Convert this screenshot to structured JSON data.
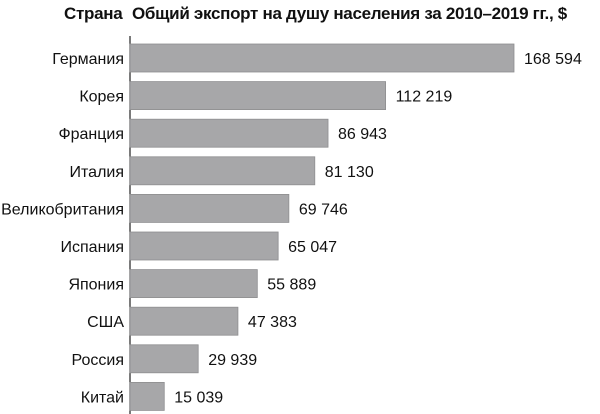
{
  "header": {
    "category_label": "Страна",
    "title": "Общий экспорт на душу населения за 2010–2019 гг., $"
  },
  "chart_data": {
    "type": "bar",
    "orientation": "horizontal",
    "categories": [
      "Германия",
      "Корея",
      "Франция",
      "Италия",
      "Великобритания",
      "Испания",
      "Япония",
      "США",
      "Россия",
      "Китай"
    ],
    "values": [
      168594,
      112219,
      86943,
      81130,
      69746,
      65047,
      55889,
      47383,
      29939,
      15039
    ],
    "value_labels": [
      "168 594",
      "112 219",
      "86 943",
      "81 130",
      "69 746",
      "65 047",
      "55 889",
      "47 383",
      "29 939",
      "15 039"
    ],
    "title": "Общий экспорт на душу населения за 2010–2019 гг., $",
    "xlabel": "",
    "ylabel": "Страна",
    "xlim": [
      0,
      168594
    ],
    "grid": false,
    "colors": {
      "bar": "#a7a7a9",
      "bar_edge": "#8e8e90",
      "axis": "#222222",
      "text": "#111111"
    }
  }
}
